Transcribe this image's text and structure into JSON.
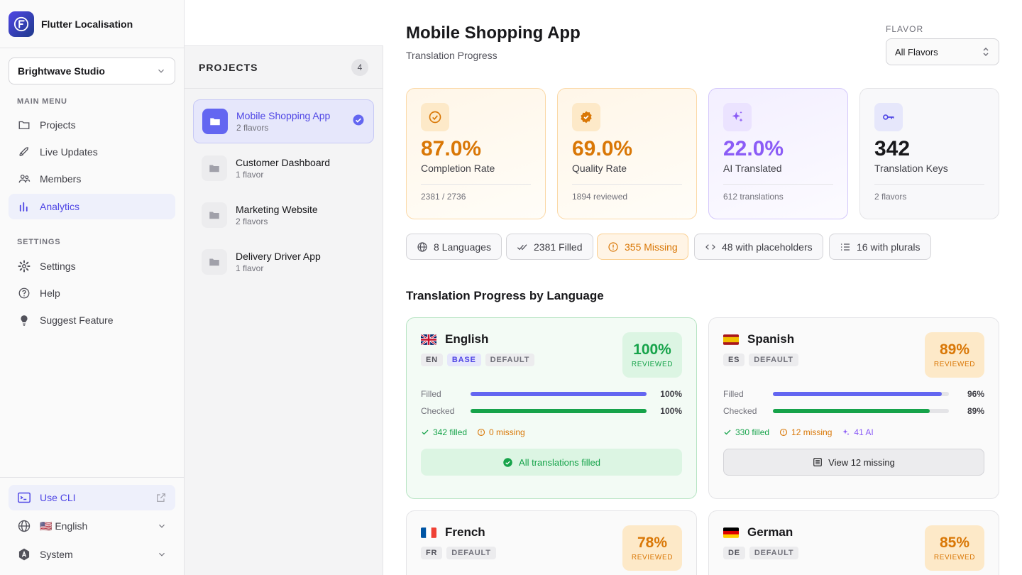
{
  "app": {
    "title": "Flutter Localisation"
  },
  "workspace": {
    "name": "Brightwave Studio"
  },
  "sidebar": {
    "main_menu_label": "MAIN MENU",
    "items": [
      {
        "label": "Projects",
        "icon": "folder-icon"
      },
      {
        "label": "Live Updates",
        "icon": "rocket-icon"
      },
      {
        "label": "Members",
        "icon": "users-icon"
      },
      {
        "label": "Analytics",
        "icon": "bar-chart-icon",
        "active": true
      }
    ],
    "settings_label": "SETTINGS",
    "settings_items": [
      {
        "label": "Settings",
        "icon": "gear-icon"
      },
      {
        "label": "Help",
        "icon": "help-icon"
      },
      {
        "label": "Suggest Feature",
        "icon": "lightbulb-icon"
      }
    ],
    "cli_label": "Use CLI",
    "language_label": "🇺🇸 English",
    "theme_label": "System"
  },
  "projects": {
    "title": "PROJECTS",
    "count": "4",
    "items": [
      {
        "name": "Mobile Shopping App",
        "sub": "2 flavors",
        "active": true
      },
      {
        "name": "Customer Dashboard",
        "sub": "1 flavor"
      },
      {
        "name": "Marketing Website",
        "sub": "2 flavors"
      },
      {
        "name": "Delivery Driver App",
        "sub": "1 flavor"
      }
    ]
  },
  "main": {
    "title": "Mobile Shopping App",
    "subtitle": "Translation Progress",
    "flavor_label": "FLAVOR",
    "flavor_value": "All Flavors",
    "stats": [
      {
        "value": "87.0%",
        "label": "Completion Rate",
        "foot": "2381 / 2736"
      },
      {
        "value": "69.0%",
        "label": "Quality Rate",
        "foot": "1894 reviewed"
      },
      {
        "value": "22.0%",
        "label": "AI Translated",
        "foot": "612 translations"
      },
      {
        "value": "342",
        "label": "Translation Keys",
        "foot": "2 flavors"
      }
    ],
    "chips": [
      "8 Languages",
      "2381 Filled",
      "355 Missing",
      "48 with placeholders",
      "16 with plurals"
    ],
    "section_title": "Translation Progress by Language",
    "languages": [
      {
        "name": "English",
        "code": "EN",
        "base": "BASE",
        "default": "DEFAULT",
        "pct": "100%",
        "reviewed": "REVIEWED",
        "filled_label": "Filled",
        "filled_pct": "100%",
        "filled": 1.0,
        "checked_label": "Checked",
        "checked_pct": "100%",
        "checked": 1.0,
        "filled_count": "342 filled",
        "missing_count": "0 missing",
        "button": "All translations filled"
      },
      {
        "name": "Spanish",
        "code": "ES",
        "default": "DEFAULT",
        "pct": "89%",
        "reviewed": "REVIEWED",
        "filled_label": "Filled",
        "filled_pct": "96%",
        "filled": 0.96,
        "checked_label": "Checked",
        "checked_pct": "89%",
        "checked": 0.89,
        "filled_count": "330 filled",
        "missing_count": "12 missing",
        "ai_count": "41 AI",
        "button": "View 12 missing"
      },
      {
        "name": "French",
        "code": "FR",
        "default": "DEFAULT",
        "pct": "78%",
        "reviewed": "REVIEWED"
      },
      {
        "name": "German",
        "code": "DE",
        "default": "DEFAULT",
        "pct": "85%",
        "reviewed": "REVIEWED"
      }
    ],
    "colors": {
      "accent": "#4f46e5",
      "filled_bar": "#6366f1",
      "checked_bar": "#16a34a",
      "warn": "#d97706",
      "ai": "#8b5cf6"
    }
  }
}
